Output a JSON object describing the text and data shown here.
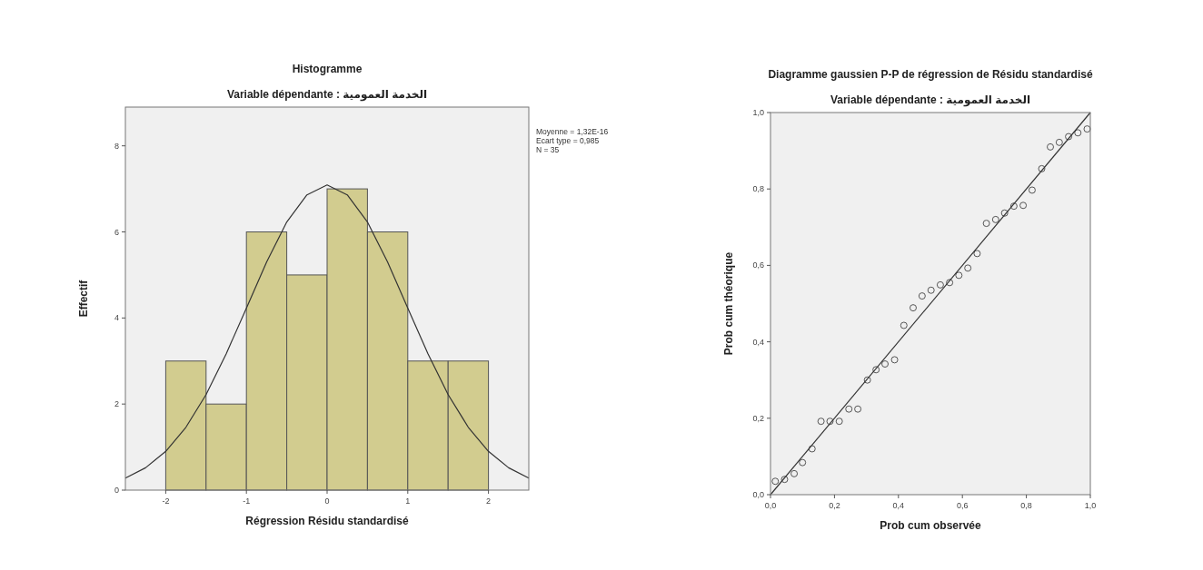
{
  "chart_data": [
    {
      "type": "histogram",
      "title": "Histogramme",
      "subtitle": "Variable dépendante : الخدمة العمومية",
      "xlabel": "Régression Résidu standardisé",
      "ylabel": "Effectif",
      "bins": [
        -2,
        -1.5,
        -1,
        -0.5,
        0,
        0.5,
        1,
        1.5,
        2
      ],
      "values": [
        3,
        2,
        6,
        5,
        7,
        6,
        3,
        3
      ],
      "color": "#d2cc8f",
      "xlim": [
        -2.5,
        2.5
      ],
      "ylim": [
        0,
        8.9
      ],
      "xticks": [
        -2,
        -1,
        0,
        1,
        2
      ],
      "yticks": [
        0,
        2,
        4,
        6,
        8
      ],
      "series": [
        {
          "type": "line",
          "color": "#333333",
          "x": [
            -2.5,
            -2.25,
            -2,
            -1.75,
            -1.5,
            -1.25,
            -1,
            -0.75,
            -0.5,
            -0.25,
            0,
            0.25,
            0.5,
            0.75,
            1,
            1.25,
            1.5,
            1.75,
            2,
            2.25,
            2.5
          ],
          "values": [
            0.28,
            0.52,
            0.9,
            1.46,
            2.22,
            3.17,
            4.23,
            5.3,
            6.23,
            6.86,
            7.09,
            6.86,
            6.23,
            5.3,
            4.23,
            3.17,
            2.22,
            1.46,
            0.9,
            0.52,
            0.28
          ]
        }
      ],
      "annotations": [
        "Moyenne = 1,32E-16",
        "Ecart type = 0,985",
        "N = 35"
      ]
    },
    {
      "type": "scatter",
      "title": "Diagramme gaussien P-P de régression de Résidu standardisé",
      "subtitle": "Variable dépendante : الخدمة العمومية",
      "xlabel": "Prob cum observée",
      "ylabel": "Prob cum théorique",
      "xlim": [
        0,
        1
      ],
      "ylim": [
        0,
        1
      ],
      "xticks": [
        {
          "value": 0,
          "label": "0,0"
        },
        {
          "value": 0.2,
          "label": "0,2"
        },
        {
          "value": 0.4,
          "label": "0,4"
        },
        {
          "value": 0.6,
          "label": "0,6"
        },
        {
          "value": 0.8,
          "label": "0,8"
        },
        {
          "value": 1,
          "label": "1,0"
        }
      ],
      "yticks": [
        {
          "value": 0,
          "label": "0,0"
        },
        {
          "value": 0.2,
          "label": "0,2"
        },
        {
          "value": 0.4,
          "label": "0,4"
        },
        {
          "value": 0.6,
          "label": "0,6"
        },
        {
          "value": 0.8,
          "label": "0,8"
        },
        {
          "value": 1,
          "label": "1,0"
        }
      ],
      "series": [
        {
          "type": "scatter",
          "marker": "circle",
          "color": "#555555",
          "x": [
            0.015,
            0.044,
            0.074,
            0.1,
            0.13,
            0.158,
            0.186,
            0.215,
            0.245,
            0.273,
            0.303,
            0.33,
            0.358,
            0.388,
            0.417,
            0.446,
            0.474,
            0.502,
            0.531,
            0.56,
            0.589,
            0.617,
            0.646,
            0.675,
            0.704,
            0.732,
            0.761,
            0.79,
            0.818,
            0.848,
            0.875,
            0.903,
            0.932,
            0.961,
            0.99
          ],
          "values": [
            0.035,
            0.04,
            0.055,
            0.084,
            0.12,
            0.192,
            0.192,
            0.192,
            0.224,
            0.224,
            0.3,
            0.327,
            0.342,
            0.353,
            0.443,
            0.489,
            0.52,
            0.535,
            0.549,
            0.555,
            0.574,
            0.593,
            0.631,
            0.71,
            0.72,
            0.737,
            0.755,
            0.757,
            0.797,
            0.853,
            0.91,
            0.922,
            0.937,
            0.947,
            0.957
          ]
        },
        {
          "type": "line",
          "color": "#333333",
          "x": [
            0,
            1
          ],
          "values": [
            0,
            1
          ]
        }
      ]
    }
  ]
}
